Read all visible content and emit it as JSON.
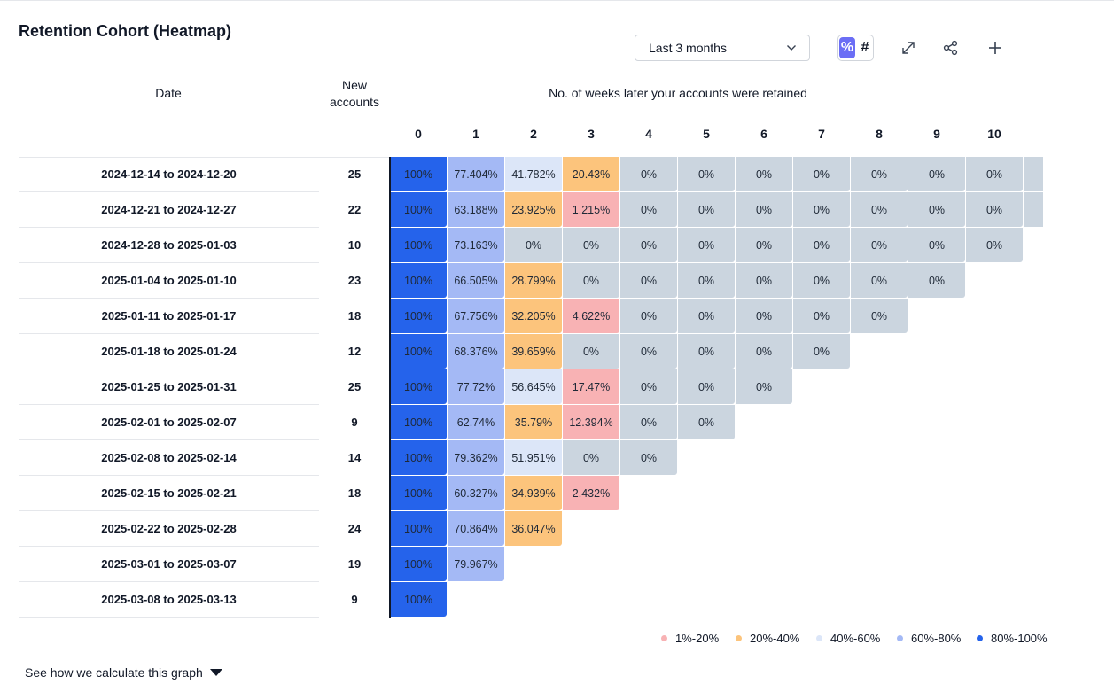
{
  "header": {
    "title": "Retention Cohort (Heatmap)",
    "range_select": "Last 3 months",
    "toggle": {
      "percent": "%",
      "count": "#",
      "active": "percent"
    },
    "icons": [
      "expand-icon",
      "share-icon",
      "plus-icon"
    ]
  },
  "table": {
    "date_header": "Date",
    "new_accounts_header_line1": "New",
    "new_accounts_header_line2": "accounts",
    "weeks_header": "No. of weeks later your accounts were retained"
  },
  "colors": {
    "c80_100": "#2563eb",
    "c60_80": "#a4b9f5",
    "c40_60": "#dce6f8",
    "c20_40": "#fcc47c",
    "c1_20": "#f8b2b4",
    "zero": "#cbd5df",
    "accent": "#6b6ef5"
  },
  "chart_data": {
    "type": "heatmap",
    "title": "Retention Cohort (Heatmap)",
    "xlabel": "No. of weeks later your accounts were retained",
    "ylabel": "Date",
    "weeks": [
      "0",
      "1",
      "2",
      "3",
      "4",
      "5",
      "6",
      "7",
      "8",
      "9",
      "10"
    ],
    "rows": [
      {
        "date": "2024-12-14 to 2024-12-20",
        "new_accounts": "25",
        "values": [
          "100%",
          "77.404%",
          "41.782%",
          "20.43%",
          "0%",
          "0%",
          "0%",
          "0%",
          "0%",
          "0%",
          "0%"
        ]
      },
      {
        "date": "2024-12-21 to 2024-12-27",
        "new_accounts": "22",
        "values": [
          "100%",
          "63.188%",
          "23.925%",
          "1.215%",
          "0%",
          "0%",
          "0%",
          "0%",
          "0%",
          "0%",
          "0%"
        ]
      },
      {
        "date": "2024-12-28 to 2025-01-03",
        "new_accounts": "10",
        "values": [
          "100%",
          "73.163%",
          "0%",
          "0%",
          "0%",
          "0%",
          "0%",
          "0%",
          "0%",
          "0%",
          "0%"
        ]
      },
      {
        "date": "2025-01-04 to 2025-01-10",
        "new_accounts": "23",
        "values": [
          "100%",
          "66.505%",
          "28.799%",
          "0%",
          "0%",
          "0%",
          "0%",
          "0%",
          "0%",
          "0%"
        ]
      },
      {
        "date": "2025-01-11 to 2025-01-17",
        "new_accounts": "18",
        "values": [
          "100%",
          "67.756%",
          "32.205%",
          "4.622%",
          "0%",
          "0%",
          "0%",
          "0%",
          "0%"
        ]
      },
      {
        "date": "2025-01-18 to 2025-01-24",
        "new_accounts": "12",
        "values": [
          "100%",
          "68.376%",
          "39.659%",
          "0%",
          "0%",
          "0%",
          "0%",
          "0%"
        ]
      },
      {
        "date": "2025-01-25 to 2025-01-31",
        "new_accounts": "25",
        "values": [
          "100%",
          "77.72%",
          "56.645%",
          "17.47%",
          "0%",
          "0%",
          "0%"
        ]
      },
      {
        "date": "2025-02-01 to 2025-02-07",
        "new_accounts": "9",
        "values": [
          "100%",
          "62.74%",
          "35.79%",
          "12.394%",
          "0%",
          "0%"
        ]
      },
      {
        "date": "2025-02-08 to 2025-02-14",
        "new_accounts": "14",
        "values": [
          "100%",
          "79.362%",
          "51.951%",
          "0%",
          "0%"
        ]
      },
      {
        "date": "2025-02-15 to 2025-02-21",
        "new_accounts": "18",
        "values": [
          "100%",
          "60.327%",
          "34.939%",
          "2.432%"
        ]
      },
      {
        "date": "2025-02-22 to 2025-02-28",
        "new_accounts": "24",
        "values": [
          "100%",
          "70.864%",
          "36.047%"
        ]
      },
      {
        "date": "2025-03-01 to 2025-03-07",
        "new_accounts": "19",
        "values": [
          "100%",
          "79.967%"
        ]
      },
      {
        "date": "2025-03-08 to 2025-03-13",
        "new_accounts": "9",
        "values": [
          "100%"
        ]
      }
    ],
    "legend": [
      {
        "label": "1%-20%",
        "color": "#f8b2b4"
      },
      {
        "label": "20%-40%",
        "color": "#fcc47c"
      },
      {
        "label": "40%-60%",
        "color": "#dce6f8"
      },
      {
        "label": "60%-80%",
        "color": "#a4b9f5"
      },
      {
        "label": "80%-100%",
        "color": "#2563eb"
      }
    ]
  },
  "footer": {
    "link": "See how we calculate this graph"
  }
}
